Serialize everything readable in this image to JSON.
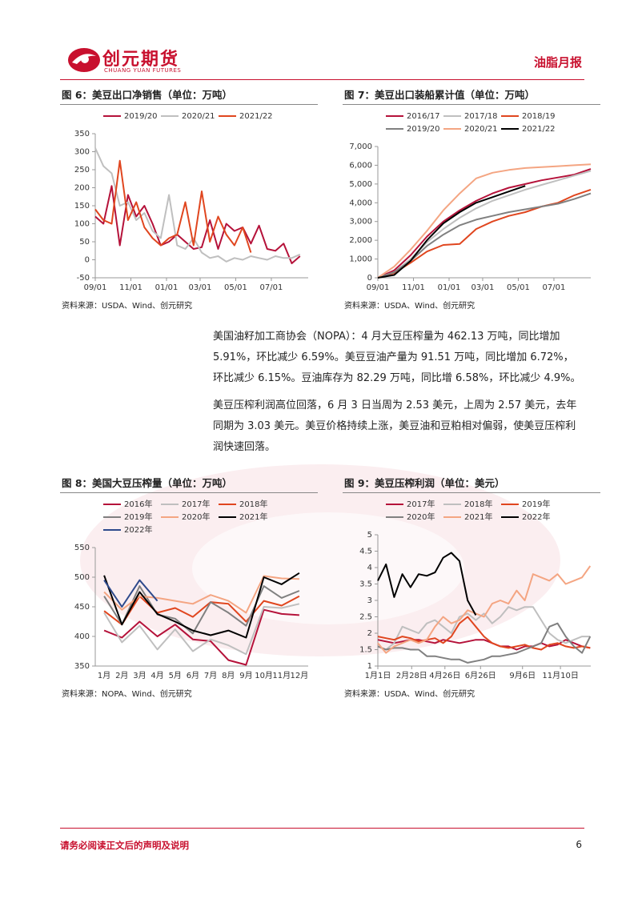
{
  "header": {
    "logo_cn": "创元期货",
    "logo_en": "CHUANG YUAN FUTURES",
    "report": "油脂月报"
  },
  "chart_data": [
    {
      "type": "line",
      "title": "图 6：美豆出口净销售（单位：万吨）",
      "source": "资料来源：USDA、Wind、创元研究",
      "legend": "top",
      "grid": false,
      "x": [
        0,
        2,
        4,
        6,
        8,
        10,
        12,
        14,
        16,
        18,
        20,
        22,
        24,
        26,
        28,
        30,
        32,
        34,
        36,
        38,
        40,
        42,
        44,
        46,
        48,
        50
      ],
      "xlim": [
        0,
        52
      ],
      "xticks": [
        {
          "value": 0,
          "label": "09/01"
        },
        {
          "value": 8.7,
          "label": "11/01"
        },
        {
          "value": 17.4,
          "label": "01/01"
        },
        {
          "value": 25.6,
          "label": "03/01"
        },
        {
          "value": 34.3,
          "label": "05/01"
        },
        {
          "value": 43,
          "label": "07/01"
        }
      ],
      "ylim": [
        -50,
        350
      ],
      "yticks": [
        -50,
        0,
        50,
        100,
        150,
        200,
        250,
        300,
        350
      ],
      "series": [
        {
          "name": "2019/20",
          "color": "#b5123a",
          "values": [
            120,
            100,
            205,
            40,
            180,
            120,
            150,
            100,
            40,
            50,
            70,
            50,
            30,
            35,
            110,
            30,
            100,
            80,
            90,
            45,
            95,
            30,
            25,
            45,
            -10,
            10
          ]
        },
        {
          "name": "2020/21",
          "color": "#bfbfbf",
          "values": [
            310,
            260,
            240,
            150,
            160,
            110,
            130,
            80,
            60,
            180,
            40,
            30,
            60,
            20,
            5,
            10,
            -5,
            5,
            0,
            10,
            5,
            0,
            10,
            5,
            5,
            15
          ]
        },
        {
          "name": "2021/22",
          "color": "#e0461f",
          "values": [
            140,
            110,
            100,
            275,
            110,
            160,
            90,
            60,
            40,
            60,
            70,
            160,
            40,
            190,
            50,
            120,
            70,
            40,
            90,
            20,
            null,
            null,
            null,
            null,
            null,
            null
          ]
        }
      ]
    },
    {
      "type": "line",
      "title": "图 7：美豆出口装船累计值（单位：万吨）",
      "source": "资料来源：USDA、Wind、创元研究",
      "legend": "top",
      "grid": false,
      "x": [
        0,
        4,
        8,
        12,
        16,
        20,
        24,
        28,
        32,
        36,
        40,
        44,
        48,
        52
      ],
      "xlim": [
        0,
        52
      ],
      "xticks": [
        {
          "value": 0,
          "label": "09/01"
        },
        {
          "value": 8.7,
          "label": "11/01"
        },
        {
          "value": 17.4,
          "label": "01/01"
        },
        {
          "value": 25.6,
          "label": "03/01"
        },
        {
          "value": 34.3,
          "label": "05/01"
        },
        {
          "value": 43,
          "label": "07/01"
        }
      ],
      "ylim": [
        0,
        7000
      ],
      "yticks": [
        0,
        {
          "value": 1000,
          "label": "1,000"
        },
        {
          "value": 2000,
          "label": "2,000"
        },
        {
          "value": 3000,
          "label": "3,000"
        },
        {
          "value": 4000,
          "label": "4,000"
        },
        {
          "value": 5000,
          "label": "5,000"
        },
        {
          "value": 6000,
          "label": "6,000"
        },
        {
          "value": 7000,
          "label": "7,000"
        }
      ],
      "series": [
        {
          "name": "2016/17",
          "color": "#b5123a",
          "values": [
            0,
            400,
            1200,
            2200,
            3000,
            3600,
            4100,
            4500,
            4800,
            5000,
            5200,
            5350,
            5500,
            5800
          ]
        },
        {
          "name": "2017/18",
          "color": "#bfbfbf",
          "values": [
            0,
            300,
            1000,
            1900,
            2600,
            3200,
            3700,
            4100,
            4400,
            4700,
            4950,
            5200,
            5450,
            5700
          ]
        },
        {
          "name": "2018/19",
          "color": "#e0461f",
          "values": [
            0,
            250,
            800,
            1400,
            1750,
            1800,
            2600,
            3000,
            3300,
            3500,
            3800,
            4000,
            4400,
            4700
          ]
        },
        {
          "name": "2019/20",
          "color": "#808080",
          "values": [
            0,
            300,
            900,
            1700,
            2300,
            2800,
            3100,
            3300,
            3500,
            3650,
            3800,
            3950,
            4200,
            4500
          ]
        },
        {
          "name": "2020/21",
          "color": "#f4a582",
          "values": [
            0,
            600,
            1500,
            2500,
            3600,
            4500,
            5300,
            5600,
            5750,
            5850,
            5900,
            5950,
            6000,
            6050
          ]
        },
        {
          "name": "2021/22",
          "color": "#000000",
          "values": [
            0,
            150,
            900,
            2000,
            2900,
            3500,
            4000,
            4300,
            4600,
            4900,
            null,
            null,
            null,
            null
          ]
        }
      ]
    },
    {
      "type": "line",
      "title": "图 8：美国大豆压榨量（单位：万吨）",
      "source": "资料来源：NOPA、Wind、创元研究",
      "legend": "top",
      "grid": false,
      "categories": [
        "1月",
        "2月",
        "3月",
        "4月",
        "5月",
        "6月",
        "7月",
        "8月",
        "9月",
        "10月",
        "11月",
        "12月"
      ],
      "ylim": [
        350,
        550
      ],
      "yticks": [
        350,
        400,
        450,
        500,
        550
      ],
      "series": [
        {
          "name": "2016年",
          "color": "#b5123a",
          "values": [
            410,
            398,
            425,
            400,
            420,
            395,
            392,
            360,
            352,
            445,
            438,
            436
          ]
        },
        {
          "name": "2017年",
          "color": "#bfbfbf",
          "values": [
            440,
            390,
            418,
            378,
            412,
            375,
            395,
            385,
            370,
            450,
            448,
            455
          ]
        },
        {
          "name": "2018年",
          "color": "#e0461f",
          "values": [
            443,
            420,
            468,
            440,
            448,
            433,
            458,
            455,
            425,
            460,
            452,
            468
          ]
        },
        {
          "name": "2019年",
          "color": "#808080",
          "values": [
            468,
            420,
            485,
            437,
            430,
            405,
            458,
            440,
            418,
            485,
            465,
            477
          ]
        },
        {
          "name": "2020年",
          "color": "#f4a582",
          "values": [
            475,
            445,
            468,
            465,
            460,
            455,
            470,
            460,
            440,
            502,
            498,
            497
          ]
        },
        {
          "name": "2021年",
          "color": "#000000",
          "values": [
            503,
            420,
            475,
            438,
            425,
            410,
            402,
            410,
            398,
            500,
            488,
            507
          ]
        },
        {
          "name": "2022年",
          "color": "#2e4a8c",
          "values": [
            495,
            450,
            495,
            460,
            null,
            null,
            null,
            null,
            null,
            null,
            null,
            null
          ]
        }
      ]
    },
    {
      "type": "line",
      "title": "图 9：美豆压榨利润（单位：美元）",
      "source": "资料来源：USDA、Wind、创元研究",
      "legend": "top",
      "grid": false,
      "x": [
        0,
        14,
        28,
        42,
        56,
        70,
        84,
        98,
        112,
        126,
        140,
        154,
        168,
        182,
        196,
        210,
        224,
        238,
        252,
        266,
        280,
        294,
        308,
        322,
        336,
        350,
        364
      ],
      "xlim": [
        0,
        365
      ],
      "xticks": [
        {
          "value": 0,
          "label": "1月1日"
        },
        {
          "value": 58,
          "label": "2月28日"
        },
        {
          "value": 115,
          "label": "4月26日"
        },
        {
          "value": 176,
          "label": "6月26日"
        },
        {
          "value": 248,
          "label": "9月6日"
        },
        {
          "value": 313,
          "label": "11月10日"
        }
      ],
      "ylim": [
        1,
        5
      ],
      "yticks": [
        1,
        1.5,
        2,
        2.5,
        3,
        3.5,
        4,
        4.5,
        5
      ],
      "series": [
        {
          "name": "2017年",
          "color": "#b5123a",
          "values": [
            1.8,
            1.75,
            1.7,
            1.75,
            1.8,
            1.8,
            1.75,
            1.7,
            1.8,
            1.75,
            1.7,
            1.75,
            1.8,
            1.8,
            1.7,
            1.6,
            1.6,
            1.5,
            1.6,
            1.6,
            1.7,
            1.6,
            1.65,
            1.8,
            1.7,
            1.6,
            1.55
          ]
        },
        {
          "name": "2018年",
          "color": "#bfbfbf",
          "values": [
            1.6,
            1.5,
            1.7,
            2.2,
            2.1,
            2.0,
            2.3,
            2.4,
            2.2,
            2.0,
            2.5,
            2.6,
            2.4,
            2.6,
            2.3,
            2.5,
            2.8,
            2.7,
            2.8,
            2.8,
            2.4,
            2.0,
            1.8,
            1.7,
            1.8,
            1.9,
            1.9
          ]
        },
        {
          "name": "2019年",
          "color": "#e0461f",
          "values": [
            1.9,
            1.85,
            1.8,
            1.9,
            1.85,
            1.75,
            1.8,
            1.85,
            1.7,
            1.9,
            2.3,
            2.5,
            2.2,
            1.9,
            1.7,
            1.6,
            1.55,
            1.6,
            1.65,
            1.55,
            1.5,
            1.65,
            1.7,
            1.6,
            1.55,
            1.6,
            1.55
          ]
        },
        {
          "name": "2020年",
          "color": "#808080",
          "values": [
            1.6,
            1.5,
            1.55,
            1.55,
            1.5,
            1.5,
            1.3,
            1.3,
            1.25,
            1.2,
            1.2,
            1.1,
            1.15,
            1.2,
            1.3,
            1.3,
            1.35,
            1.4,
            1.5,
            1.6,
            1.7,
            2.2,
            2.3,
            1.9,
            1.6,
            1.4,
            1.9
          ]
        },
        {
          "name": "2021年",
          "color": "#f4a582",
          "values": [
            1.7,
            1.4,
            1.6,
            1.7,
            1.8,
            1.7,
            1.8,
            2.2,
            2.5,
            2.3,
            2.4,
            2.7,
            2.6,
            2.5,
            2.9,
            3.0,
            2.9,
            3.3,
            3.0,
            3.8,
            3.7,
            3.6,
            3.8,
            3.5,
            3.6,
            3.7,
            4.05
          ]
        },
        {
          "name": "2022年",
          "color": "#000000",
          "values": [
            3.6,
            4.1,
            3.1,
            3.8,
            3.4,
            3.8,
            3.75,
            3.85,
            4.3,
            4.45,
            4.2,
            3.0,
            2.55,
            null,
            null,
            null,
            null,
            null,
            null,
            null,
            null,
            null,
            null,
            null,
            null,
            null,
            null
          ]
        }
      ]
    }
  ],
  "body": {
    "paragraphs": [
      "美国油籽加工商协会（NOPA）：4 月大豆压榨量为 462.13 万吨，同比增加 5.91%，环比减少 6.59%。美豆豆油产量为 91.51 万吨，同比增加 6.72%，环比减少 6.15%。豆油库存为 82.29 万吨，同比增 6.58%，环比减少 4.9%。",
      "美豆压榨利润高位回落，6 月 3 日当周为 2.53 美元，上周为 2.57 美元，去年同期为 3.03 美元。美豆价格持续上涨，美豆油和豆粕相对偏弱，使美豆压榨利润快速回落。"
    ]
  },
  "footer": {
    "disclaimer": "请务必阅读正文后的声明及说明",
    "page": 6
  }
}
